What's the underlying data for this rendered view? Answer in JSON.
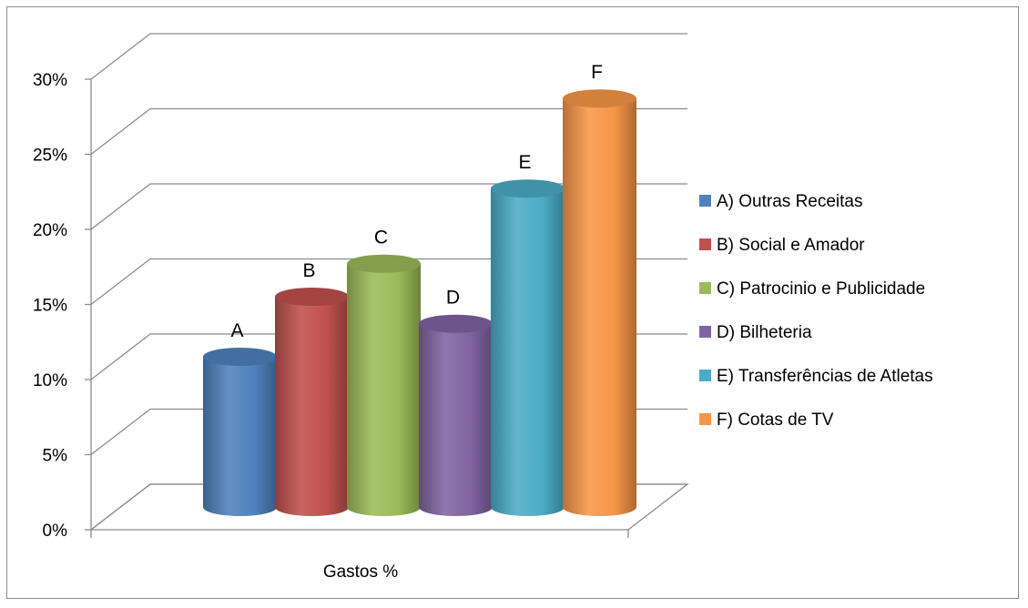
{
  "chart_data": {
    "type": "bar",
    "title": "",
    "xlabel": "",
    "ylabel": "",
    "categories": [
      "Gastos %"
    ],
    "ylim": [
      0,
      30
    ],
    "yticks": [
      "0%",
      "5%",
      "10%",
      "15%",
      "20%",
      "25%",
      "30%"
    ],
    "grid": true,
    "legend_position": "right",
    "series": [
      {
        "name": "A) Outras Receitas",
        "label": "A",
        "value": 10,
        "color": "#4f81bd"
      },
      {
        "name": "B) Social e Amador",
        "label": "B",
        "value": 14,
        "color": "#c0504d"
      },
      {
        "name": "C) Patrocinio e Publicidade",
        "label": "C",
        "value": 16.2,
        "color": "#9bbb59"
      },
      {
        "name": "D) Bilheteria",
        "label": "D",
        "value": 12.2,
        "color": "#8064a2"
      },
      {
        "name": "E) Transferências de Atletas",
        "label": "E",
        "value": 21.2,
        "color": "#4bacc6"
      },
      {
        "name": "F) Cotas de TV",
        "label": "F",
        "value": 27.2,
        "color": "#f79646"
      }
    ]
  }
}
